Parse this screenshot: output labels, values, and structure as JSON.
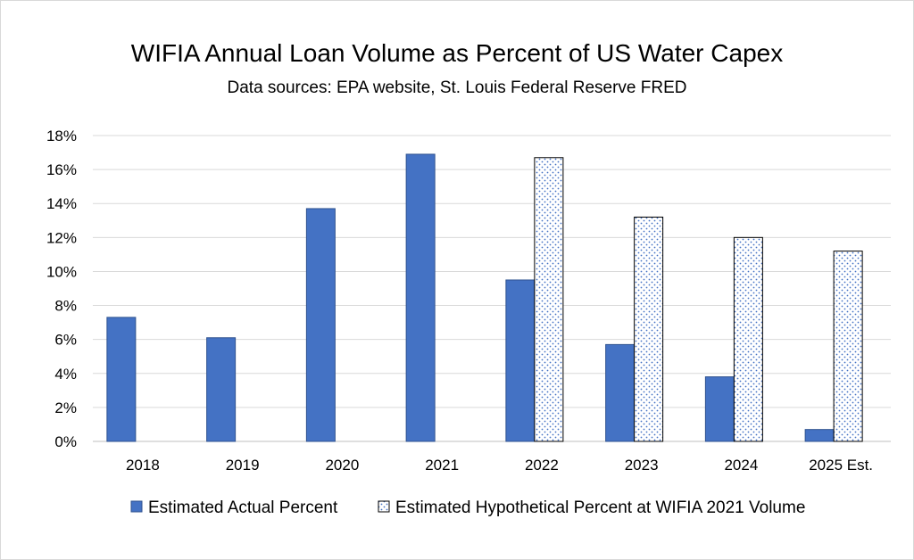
{
  "chart_data": {
    "type": "bar",
    "title": "WIFIA Annual Loan Volume as Percent of US Water Capex",
    "subtitle": "Data sources: EPA website, St. Louis Federal Reserve FRED",
    "categories": [
      "2018",
      "2019",
      "2020",
      "2021",
      "2022",
      "2023",
      "2024",
      "2025 Est."
    ],
    "series": [
      {
        "name": "Estimated Actual Percent",
        "color": "#4472c4",
        "values": [
          7.3,
          6.1,
          13.7,
          16.9,
          9.5,
          5.7,
          3.8,
          0.7
        ]
      },
      {
        "name": "Estimated Hypothetical Percent at WIFIA 2021 Volume",
        "color": "#ffffff",
        "pattern": "dotted",
        "values": [
          null,
          null,
          null,
          null,
          16.7,
          13.2,
          12.0,
          11.2
        ]
      }
    ],
    "ylim": [
      0,
      18
    ],
    "yticks": [
      "0%",
      "2%",
      "4%",
      "6%",
      "8%",
      "10%",
      "12%",
      "14%",
      "16%",
      "18%"
    ],
    "ytick_values": [
      0,
      2,
      4,
      6,
      8,
      10,
      12,
      14,
      16,
      18
    ],
    "grid": true,
    "legend_position": "bottom"
  }
}
